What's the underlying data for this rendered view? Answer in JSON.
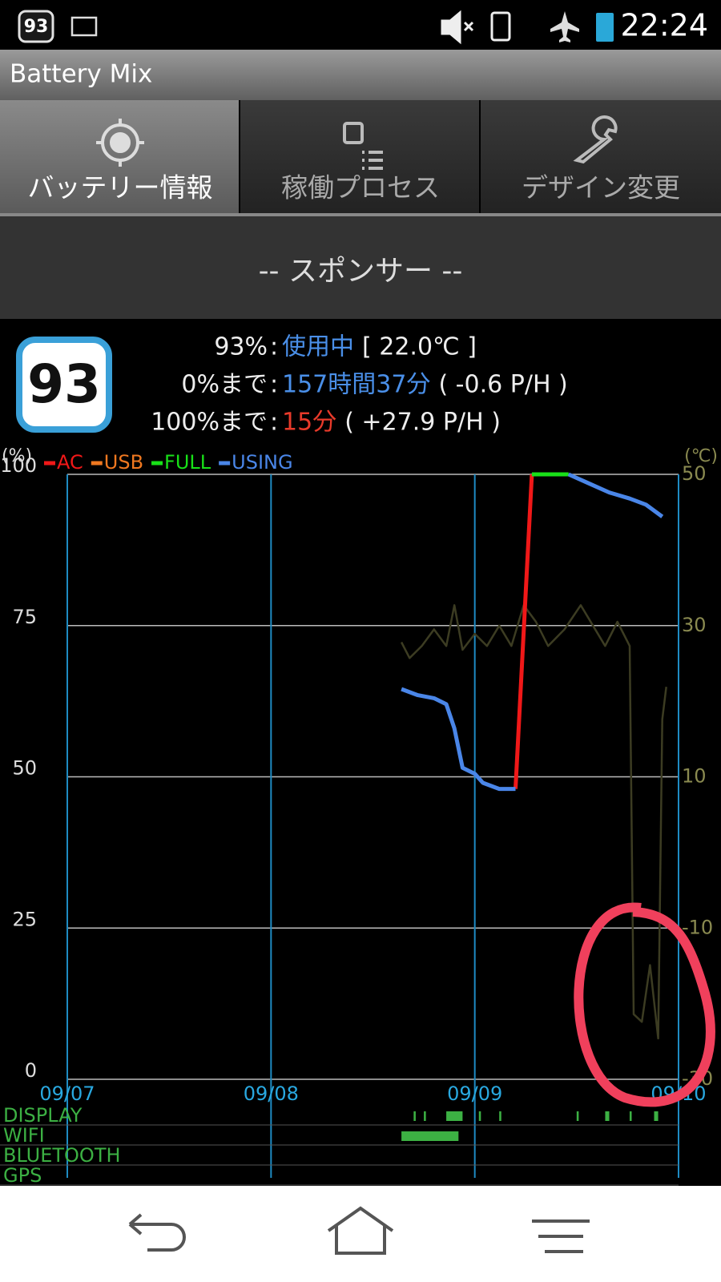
{
  "status_bar": {
    "badge": "93",
    "time": "22:24"
  },
  "app_title": "Battery Mix",
  "tabs": [
    "バッテリー情報",
    "稼働プロセス",
    "デザイン変更"
  ],
  "sponsor": "-- スポンサー --",
  "battery_badge": "93",
  "info": [
    {
      "label": "93%",
      "separator": ":",
      "value": "使用中",
      "extra": "[ 22.0℃ ]"
    },
    {
      "label": "0%まで",
      "separator": ":",
      "value": "157時間37分",
      "extra": "( -0.6 P/H )"
    },
    {
      "label": "100%まで",
      "separator": ":",
      "value": "15分",
      "extra": "( +27.9 P/H )"
    }
  ],
  "chart_data": {
    "type": "line",
    "y_label": "(%)",
    "y2_label": "(℃)",
    "x": [
      1.64,
      1.72,
      1.8,
      1.86,
      1.9,
      1.94,
      2.0,
      2.04,
      2.12,
      2.2,
      2.28,
      2.46,
      2.56,
      2.66,
      2.76,
      2.84,
      2.92
    ],
    "xlim": [
      0,
      3
    ],
    "xticks": [
      {
        "value": 0,
        "label": "09/07"
      },
      {
        "value": 1,
        "label": "09/08"
      },
      {
        "value": 2,
        "label": "09/09"
      },
      {
        "value": 3,
        "label": "09/10"
      }
    ],
    "ylim": [
      0,
      100
    ],
    "yticks": [
      0,
      25,
      50,
      75,
      100
    ],
    "y2lim": [
      -30,
      50
    ],
    "y2ticks": [
      -30,
      -10,
      10,
      30,
      50
    ],
    "grid": true,
    "series": [
      {
        "name": "AC",
        "color": "#f01818",
        "values": [
          null,
          null,
          null,
          null,
          null,
          null,
          null,
          null,
          null,
          48,
          100,
          null,
          null,
          null,
          null,
          null,
          null
        ]
      },
      {
        "name": "USB",
        "color": "#f07820",
        "values": [
          null,
          null,
          null,
          null,
          null,
          null,
          null,
          null,
          null,
          null,
          null,
          null,
          null,
          null,
          null,
          null,
          null
        ]
      },
      {
        "name": "FULL",
        "color": "#18e018",
        "values": [
          null,
          null,
          null,
          null,
          null,
          null,
          null,
          null,
          null,
          null,
          100,
          100,
          null,
          null,
          null,
          null,
          null
        ]
      },
      {
        "name": "USING",
        "color": "#4a86e8",
        "values": [
          64.5,
          63.5,
          63,
          62,
          58,
          51.5,
          50.5,
          49,
          48,
          48,
          null,
          100,
          98.5,
          97,
          96,
          95,
          93
        ]
      },
      {
        "color": "#3c3c22",
        "axis": "y2",
        "x": [
          1.64,
          1.68,
          1.74,
          1.8,
          1.86,
          1.9,
          1.94,
          2.0,
          2.06,
          2.12,
          2.18,
          2.24,
          2.3,
          2.36,
          2.44,
          2.52,
          2.58,
          2.64,
          2.7,
          2.76,
          2.78,
          2.82,
          2.86,
          2.9,
          2.92,
          2.94
        ],
        "values": [
          27.8,
          25.7,
          27.3,
          29.5,
          27.3,
          32.7,
          26.8,
          28.9,
          27.3,
          30.0,
          27.3,
          32.7,
          30.5,
          27.3,
          29.5,
          32.7,
          30.0,
          27.3,
          30.5,
          27.3,
          -21.4,
          -22.4,
          -14.9,
          -24.6,
          17.6,
          21.9
        ]
      }
    ],
    "activity": [
      {
        "label": "DISPLAY",
        "color": "#3cb043",
        "intervals": [
          [
            1.7,
            1.71
          ],
          [
            1.75,
            1.76
          ],
          [
            1.86,
            1.94
          ],
          [
            2.02,
            2.03
          ],
          [
            2.12,
            2.13
          ],
          [
            2.5,
            2.51
          ],
          [
            2.64,
            2.66
          ],
          [
            2.76,
            2.77
          ],
          [
            2.88,
            2.9
          ]
        ]
      },
      {
        "label": "WIFI",
        "color": "#3cb043",
        "intervals": [
          [
            1.64,
            1.92
          ]
        ]
      },
      {
        "label": "BLUETOOTH",
        "color": "#3cb043",
        "intervals": []
      },
      {
        "label": "GPS",
        "color": "#3cb043",
        "intervals": []
      }
    ]
  }
}
